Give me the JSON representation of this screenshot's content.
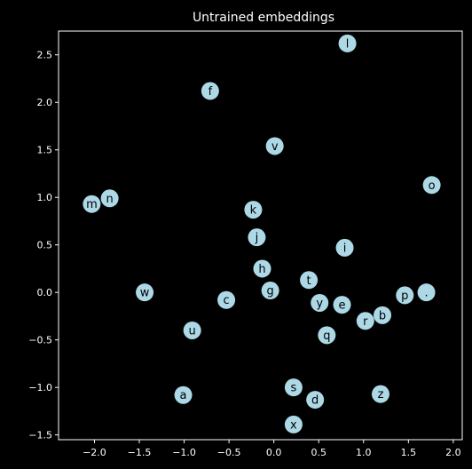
{
  "chart_data": {
    "type": "scatter",
    "title": "Untrained embeddings",
    "xlabel": "",
    "ylabel": "",
    "xlim": [
      -2.4,
      2.1
    ],
    "ylim": [
      -1.55,
      2.75
    ],
    "xticks": [
      -2.0,
      -1.5,
      -1.0,
      -0.5,
      0.0,
      0.5,
      1.0,
      1.5,
      2.0
    ],
    "yticks": [
      -1.5,
      -1.0,
      -0.5,
      0.0,
      0.5,
      1.0,
      1.5,
      2.0,
      2.5
    ],
    "xtick_labels": [
      "−2.0",
      "−1.5",
      "−1.0",
      "−0.5",
      "0.0",
      "0.5",
      "1.0",
      "1.5",
      "2.0"
    ],
    "ytick_labels": [
      "−1.5",
      "−1.0",
      "−0.5",
      "0.0",
      "0.5",
      "1.0",
      "1.5",
      "2.0",
      "2.5"
    ],
    "grid": false,
    "colors": {
      "background": "#000000",
      "axes": "#ffffff",
      "marker": "#add8e6",
      "label": "#000000"
    },
    "points": [
      {
        "label": "l",
        "x": 0.82,
        "y": 2.62
      },
      {
        "label": "f",
        "x": -0.71,
        "y": 2.12
      },
      {
        "label": "v",
        "x": 0.01,
        "y": 1.54
      },
      {
        "label": "o",
        "x": 1.76,
        "y": 1.13
      },
      {
        "label": "m",
        "x": -2.03,
        "y": 0.93
      },
      {
        "label": "n",
        "x": -1.83,
        "y": 0.99
      },
      {
        "label": "k",
        "x": -0.23,
        "y": 0.87
      },
      {
        "label": "j",
        "x": -0.19,
        "y": 0.58
      },
      {
        "label": "i",
        "x": 0.79,
        "y": 0.47
      },
      {
        "label": "h",
        "x": -0.13,
        "y": 0.25
      },
      {
        "label": "t",
        "x": 0.39,
        "y": 0.13
      },
      {
        "label": "w",
        "x": -1.44,
        "y": 0.0
      },
      {
        "label": "g",
        "x": -0.04,
        "y": 0.02
      },
      {
        "label": "c",
        "x": -0.53,
        "y": -0.08
      },
      {
        "label": "y",
        "x": 0.51,
        "y": -0.11
      },
      {
        "label": "e",
        "x": 0.76,
        "y": -0.13
      },
      {
        "label": "p",
        "x": 1.46,
        "y": -0.03
      },
      {
        "label": ".",
        "x": 1.7,
        "y": 0.0
      },
      {
        "label": "b",
        "x": 1.21,
        "y": -0.24
      },
      {
        "label": "r",
        "x": 1.02,
        "y": -0.3
      },
      {
        "label": "u",
        "x": -0.91,
        "y": -0.4
      },
      {
        "label": "q",
        "x": 0.59,
        "y": -0.45
      },
      {
        "label": "s",
        "x": 0.22,
        "y": -1.0
      },
      {
        "label": "d",
        "x": 0.46,
        "y": -1.13
      },
      {
        "label": "a",
        "x": -1.01,
        "y": -1.08
      },
      {
        "label": "z",
        "x": 1.19,
        "y": -1.07
      },
      {
        "label": "x",
        "x": 0.22,
        "y": -1.39
      }
    ]
  }
}
